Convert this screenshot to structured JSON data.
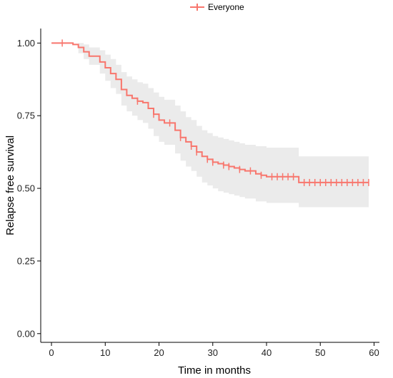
{
  "chart_data": {
    "type": "line",
    "title": "",
    "xlabel": "Time in months",
    "ylabel": "Relapse free survival",
    "xlim": [
      -2,
      61
    ],
    "ylim": [
      -0.03,
      1.05
    ],
    "xticks": [
      0,
      10,
      20,
      30,
      40,
      50,
      60
    ],
    "yticks": [
      0.0,
      0.25,
      0.5,
      0.75,
      1.0
    ],
    "ytick_labels": [
      "0.00",
      "0.25",
      "0.50",
      "0.75",
      "1.00"
    ],
    "grid": false,
    "legend": {
      "position": "top-center",
      "entries": [
        "Everyone"
      ]
    },
    "series": [
      {
        "name": "Everyone",
        "color": "#f8766d",
        "step": [
          [
            0,
            1.0
          ],
          [
            4,
            0.995
          ],
          [
            5,
            0.985
          ],
          [
            6,
            0.97
          ],
          [
            7,
            0.955
          ],
          [
            9,
            0.935
          ],
          [
            10,
            0.915
          ],
          [
            11,
            0.895
          ],
          [
            12,
            0.875
          ],
          [
            13,
            0.84
          ],
          [
            14,
            0.82
          ],
          [
            15,
            0.81
          ],
          [
            16,
            0.8
          ],
          [
            17,
            0.795
          ],
          [
            18,
            0.775
          ],
          [
            19,
            0.755
          ],
          [
            20,
            0.735
          ],
          [
            21,
            0.725
          ],
          [
            23,
            0.7
          ],
          [
            24,
            0.675
          ],
          [
            25,
            0.66
          ],
          [
            26,
            0.645
          ],
          [
            27,
            0.625
          ],
          [
            28,
            0.61
          ],
          [
            29,
            0.6
          ],
          [
            30,
            0.59
          ],
          [
            31,
            0.585
          ],
          [
            32,
            0.58
          ],
          [
            33,
            0.575
          ],
          [
            34,
            0.57
          ],
          [
            35,
            0.565
          ],
          [
            36,
            0.56
          ],
          [
            38,
            0.55
          ],
          [
            39,
            0.545
          ],
          [
            40,
            0.54
          ],
          [
            46,
            0.52
          ],
          [
            59,
            0.52
          ]
        ],
        "censored": [
          [
            2,
            1.0
          ],
          [
            13,
            0.86
          ],
          [
            16,
            0.8
          ],
          [
            19,
            0.755
          ],
          [
            22,
            0.725
          ],
          [
            24,
            0.675
          ],
          [
            26,
            0.645
          ],
          [
            27,
            0.625
          ],
          [
            29,
            0.6
          ],
          [
            30,
            0.59
          ],
          [
            32,
            0.58
          ],
          [
            33,
            0.575
          ],
          [
            35,
            0.565
          ],
          [
            37,
            0.56
          ],
          [
            39,
            0.545
          ],
          [
            41,
            0.54
          ],
          [
            42,
            0.54
          ],
          [
            43,
            0.54
          ],
          [
            44,
            0.54
          ],
          [
            45,
            0.54
          ],
          [
            47,
            0.52
          ],
          [
            48,
            0.52
          ],
          [
            49,
            0.52
          ],
          [
            50,
            0.52
          ],
          [
            51,
            0.52
          ],
          [
            52,
            0.52
          ],
          [
            53,
            0.52
          ],
          [
            54,
            0.52
          ],
          [
            55,
            0.52
          ],
          [
            56,
            0.52
          ],
          [
            57,
            0.52
          ],
          [
            58,
            0.52
          ],
          [
            59,
            0.52
          ]
        ],
        "ci_lower": [
          [
            0,
            1.0
          ],
          [
            5,
            0.965
          ],
          [
            6,
            0.945
          ],
          [
            7,
            0.925
          ],
          [
            9,
            0.895
          ],
          [
            10,
            0.87
          ],
          [
            11,
            0.845
          ],
          [
            12,
            0.825
          ],
          [
            13,
            0.785
          ],
          [
            14,
            0.765
          ],
          [
            15,
            0.75
          ],
          [
            16,
            0.735
          ],
          [
            17,
            0.725
          ],
          [
            18,
            0.705
          ],
          [
            19,
            0.68
          ],
          [
            20,
            0.66
          ],
          [
            21,
            0.65
          ],
          [
            23,
            0.62
          ],
          [
            24,
            0.595
          ],
          [
            25,
            0.575
          ],
          [
            26,
            0.56
          ],
          [
            27,
            0.54
          ],
          [
            28,
            0.52
          ],
          [
            29,
            0.51
          ],
          [
            30,
            0.5
          ],
          [
            31,
            0.49
          ],
          [
            32,
            0.485
          ],
          [
            33,
            0.48
          ],
          [
            34,
            0.475
          ],
          [
            35,
            0.47
          ],
          [
            36,
            0.465
          ],
          [
            38,
            0.455
          ],
          [
            40,
            0.45
          ],
          [
            46,
            0.435
          ],
          [
            59,
            0.435
          ]
        ],
        "ci_upper": [
          [
            0,
            1.0
          ],
          [
            5,
            1.0
          ],
          [
            6,
            0.995
          ],
          [
            7,
            0.985
          ],
          [
            9,
            0.975
          ],
          [
            10,
            0.96
          ],
          [
            11,
            0.945
          ],
          [
            12,
            0.925
          ],
          [
            13,
            0.9
          ],
          [
            14,
            0.885
          ],
          [
            15,
            0.875
          ],
          [
            16,
            0.865
          ],
          [
            17,
            0.86
          ],
          [
            18,
            0.845
          ],
          [
            19,
            0.83
          ],
          [
            20,
            0.815
          ],
          [
            21,
            0.805
          ],
          [
            23,
            0.785
          ],
          [
            24,
            0.765
          ],
          [
            25,
            0.745
          ],
          [
            26,
            0.735
          ],
          [
            27,
            0.715
          ],
          [
            28,
            0.7
          ],
          [
            29,
            0.69
          ],
          [
            30,
            0.68
          ],
          [
            31,
            0.675
          ],
          [
            32,
            0.67
          ],
          [
            33,
            0.665
          ],
          [
            34,
            0.66
          ],
          [
            35,
            0.655
          ],
          [
            36,
            0.65
          ],
          [
            38,
            0.645
          ],
          [
            40,
            0.64
          ],
          [
            46,
            0.61
          ],
          [
            59,
            0.61
          ]
        ]
      }
    ],
    "colors": {
      "ci_band": "#ebebeb",
      "axis": "#000000",
      "text": "#222222"
    }
  }
}
